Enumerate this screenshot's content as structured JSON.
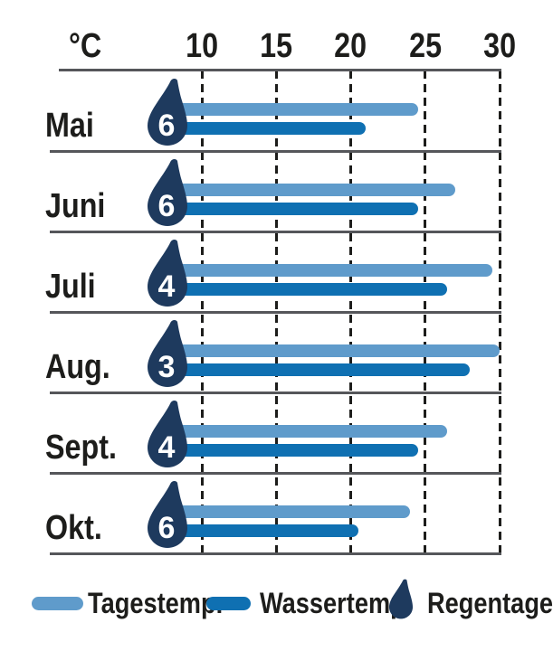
{
  "chart_data": {
    "type": "bar",
    "orientation": "horizontal",
    "title": "",
    "unit_label": "°C",
    "x_ticks": [
      10,
      15,
      20,
      25,
      30
    ],
    "xlim": [
      10,
      30
    ],
    "grid": "dashed-vertical",
    "legend_position": "bottom",
    "categories": [
      "Mai",
      "Juni",
      "Juli",
      "Aug.",
      "Sept.",
      "Okt."
    ],
    "series": [
      {
        "name": "Tagestemp.",
        "color": "#5f9bcb",
        "values": [
          24.5,
          27,
          29.5,
          30,
          26.5,
          24
        ]
      },
      {
        "name": "Wassertemp.",
        "color": "#0f70b2",
        "values": [
          21,
          24.5,
          26.5,
          28,
          24.5,
          20.5
        ]
      }
    ],
    "rain_days": {
      "name": "Regentage",
      "icon": "raindrop-icon",
      "color": "#1e3a5e",
      "values": [
        6,
        6,
        4,
        3,
        4,
        6
      ]
    }
  },
  "legend": {
    "items": [
      {
        "label": "Tagestemp.",
        "swatch": "light-blue-pill",
        "color": "#5f9bcb"
      },
      {
        "label": "Wassertemp.",
        "swatch": "dark-blue-pill",
        "color": "#0f70b2"
      },
      {
        "label": "Regentage",
        "swatch": "raindrop-icon",
        "color": "#1e3a5e"
      }
    ]
  },
  "colors": {
    "day_temp": "#5f9bcb",
    "water_temp": "#0f70b2",
    "raindrop": "#1e3a5e",
    "text": "#1d1d1b",
    "axis_line": "#55565a",
    "background": "#ffffff"
  }
}
